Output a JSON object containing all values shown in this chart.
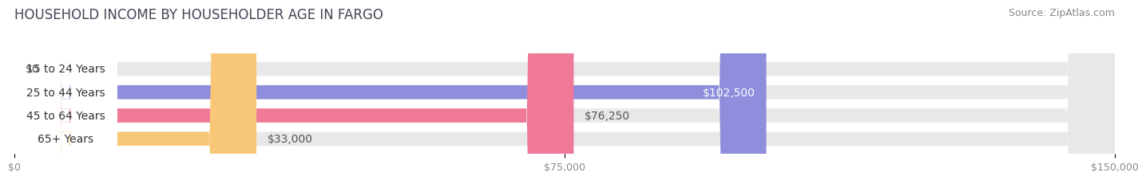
{
  "title": "HOUSEHOLD INCOME BY HOUSEHOLDER AGE IN FARGO",
  "source": "Source: ZipAtlas.com",
  "categories": [
    "15 to 24 Years",
    "25 to 44 Years",
    "45 to 64 Years",
    "65+ Years"
  ],
  "values": [
    0,
    102500,
    76250,
    33000
  ],
  "bar_colors": [
    "#7dd8d8",
    "#8e8edc",
    "#f07898",
    "#f8c878"
  ],
  "value_labels": [
    "$0",
    "$102,500",
    "$76,250",
    "$33,000"
  ],
  "value_label_inside": [
    false,
    true,
    false,
    false
  ],
  "x_ticks": [
    0,
    75000,
    150000
  ],
  "x_tick_labels": [
    "$0",
    "$75,000",
    "$150,000"
  ],
  "xlim": [
    0,
    150000
  ],
  "background_color": "#ffffff",
  "bar_bg_color": "#e8e8e8",
  "title_fontsize": 12,
  "label_fontsize": 10,
  "tick_fontsize": 9,
  "source_fontsize": 9
}
